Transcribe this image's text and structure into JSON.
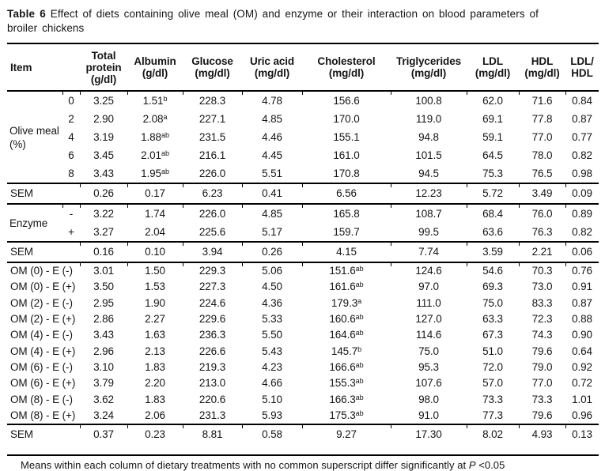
{
  "title": {
    "bold": "Table 6",
    "rest": " Effect of diets containing olive meal (OM) and enzyme or their interaction on blood parameters of\nbroiler chickens"
  },
  "table": {
    "item_header": "Item",
    "columns": [
      {
        "name": "total-protein",
        "lines": [
          "Total",
          "protein",
          "(g/dl)"
        ]
      },
      {
        "name": "albumin",
        "lines": [
          "Albumin",
          "(g/dl)"
        ]
      },
      {
        "name": "glucose",
        "lines": [
          "Glucose",
          "(mg/dl)"
        ]
      },
      {
        "name": "uric-acid",
        "lines": [
          "Uric acid",
          "(mg/dl)"
        ]
      },
      {
        "name": "cholesterol",
        "lines": [
          "Cholesterol",
          "(mg/dl)"
        ]
      },
      {
        "name": "triglycerides",
        "lines": [
          "Triglycerides",
          "(mg/dl)"
        ]
      },
      {
        "name": "ldl",
        "lines": [
          "LDL",
          "(mg/dl)"
        ]
      },
      {
        "name": "hdl",
        "lines": [
          "HDL",
          "(mg/dl)"
        ]
      },
      {
        "name": "ldl-hdl-ratio",
        "lines": [
          "LDL/",
          "HDL"
        ]
      }
    ],
    "sections": [
      {
        "type": "group",
        "label": "Olive meal\n(%)",
        "rows": [
          {
            "sub": "0",
            "values": [
              "3.25",
              "1.51^b",
              "228.3",
              "4.78",
              "156.6",
              "100.8",
              "62.0",
              "71.6",
              "0.84"
            ]
          },
          {
            "sub": "2",
            "values": [
              "2.90",
              "2.08^a",
              "227.1",
              "4.85",
              "170.0",
              "119.0",
              "69.1",
              "77.8",
              "0.87"
            ]
          },
          {
            "sub": "4",
            "values": [
              "3.19",
              "1.88^ab",
              "231.5",
              "4.46",
              "155.1",
              "94.8",
              "59.1",
              "77.0",
              "0.77"
            ]
          },
          {
            "sub": "6",
            "values": [
              "3.45",
              "2.01^ab",
              "216.1",
              "4.45",
              "161.0",
              "101.5",
              "64.5",
              "78.0",
              "0.82"
            ]
          },
          {
            "sub": "8",
            "values": [
              "3.43",
              "1.95^ab",
              "226.0",
              "5.51",
              "170.8",
              "94.5",
              "75.3",
              "76.5",
              "0.98"
            ]
          }
        ]
      },
      {
        "type": "sem",
        "label": "SEM",
        "values": [
          "0.26",
          "0.17",
          "6.23",
          "0.41",
          "6.56",
          "12.23",
          "5.72",
          "3.49",
          "0.09"
        ]
      },
      {
        "type": "group",
        "label": "Enzyme",
        "rows": [
          {
            "sub": "-",
            "values": [
              "3.22",
              "1.74",
              "226.0",
              "4.85",
              "165.8",
              "108.7",
              "68.4",
              "76.0",
              "0.89"
            ]
          },
          {
            "sub": "+",
            "values": [
              "3.27",
              "2.04",
              "225.6",
              "5.17",
              "159.7",
              "99.5",
              "63.6",
              "76.3",
              "0.82"
            ]
          }
        ]
      },
      {
        "type": "sem",
        "label": "SEM",
        "values": [
          "0.16",
          "0.10",
          "3.94",
          "0.26",
          "4.15",
          "7.74",
          "3.59",
          "2.21",
          "0.06"
        ]
      },
      {
        "type": "plain",
        "rows": [
          {
            "label": "OM (0) - E (-)",
            "values": [
              "3.01",
              "1.50",
              "229.3",
              "5.06",
              "151.6^ab",
              "124.6",
              "54.6",
              "70.3",
              "0.76"
            ]
          },
          {
            "label": "OM (0) - E (+)",
            "values": [
              "3.50",
              "1.53",
              "227.3",
              "4.50",
              "161.6^ab",
              "97.0",
              "69.3",
              "73.0",
              "0.91"
            ]
          },
          {
            "label": "OM (2) - E (-)",
            "values": [
              "2.95",
              "1.90",
              "224.6",
              "4.36",
              "179.3^a",
              "111.0",
              "75.0",
              "83.3",
              "0.87"
            ]
          },
          {
            "label": "OM (2) - E (+)",
            "values": [
              "2.86",
              "2.27",
              "229.6",
              "5.33",
              "160.6^ab",
              "127.0",
              "63.3",
              "72.3",
              "0.88"
            ]
          },
          {
            "label": "OM (4) - E (-)",
            "values": [
              "3.43",
              "1.63",
              "236.3",
              "5.50",
              "164.6^ab",
              "114.6",
              "67.3",
              "74.3",
              "0.90"
            ]
          },
          {
            "label": "OM (4) - E (+)",
            "values": [
              "2.96",
              "2.13",
              "226.6",
              "5.43",
              "145.7^b",
              "75.0",
              "51.0",
              "79.6",
              "0.64"
            ]
          },
          {
            "label": "OM (6) - E (-)",
            "values": [
              "3.10",
              "1.83",
              "219.3",
              "4.23",
              "166.6^ab",
              "95.3",
              "72.0",
              "79.0",
              "0.92"
            ]
          },
          {
            "label": "OM (6) - E (+)",
            "values": [
              "3.79",
              "2.20",
              "213.0",
              "4.66",
              "155.3^ab",
              "107.6",
              "57.0",
              "77.0",
              "0.72"
            ]
          },
          {
            "label": "OM (8) - E (-)",
            "values": [
              "3.62",
              "1.83",
              "220.6",
              "5.10",
              "166.3^ab",
              "98.0",
              "73.3",
              "73.3",
              "1.01"
            ]
          },
          {
            "label": "OM (8) - E (+)",
            "values": [
              "3.24",
              "2.06",
              "231.3",
              "5.93",
              "175.3^ab",
              "91.0",
              "77.3",
              "79.6",
              "0.96"
            ]
          }
        ]
      },
      {
        "type": "sem",
        "label": "SEM",
        "values": [
          "0.37",
          "0.23",
          "8.81",
          "0.58",
          "9.27",
          "17.30",
          "8.02",
          "4.93",
          "0.13"
        ]
      }
    ]
  },
  "footnote": {
    "prefix": "Means within each column of dietary treatments with no common superscript differ significantly at ",
    "italic": "P",
    "suffix": " <0.05"
  }
}
